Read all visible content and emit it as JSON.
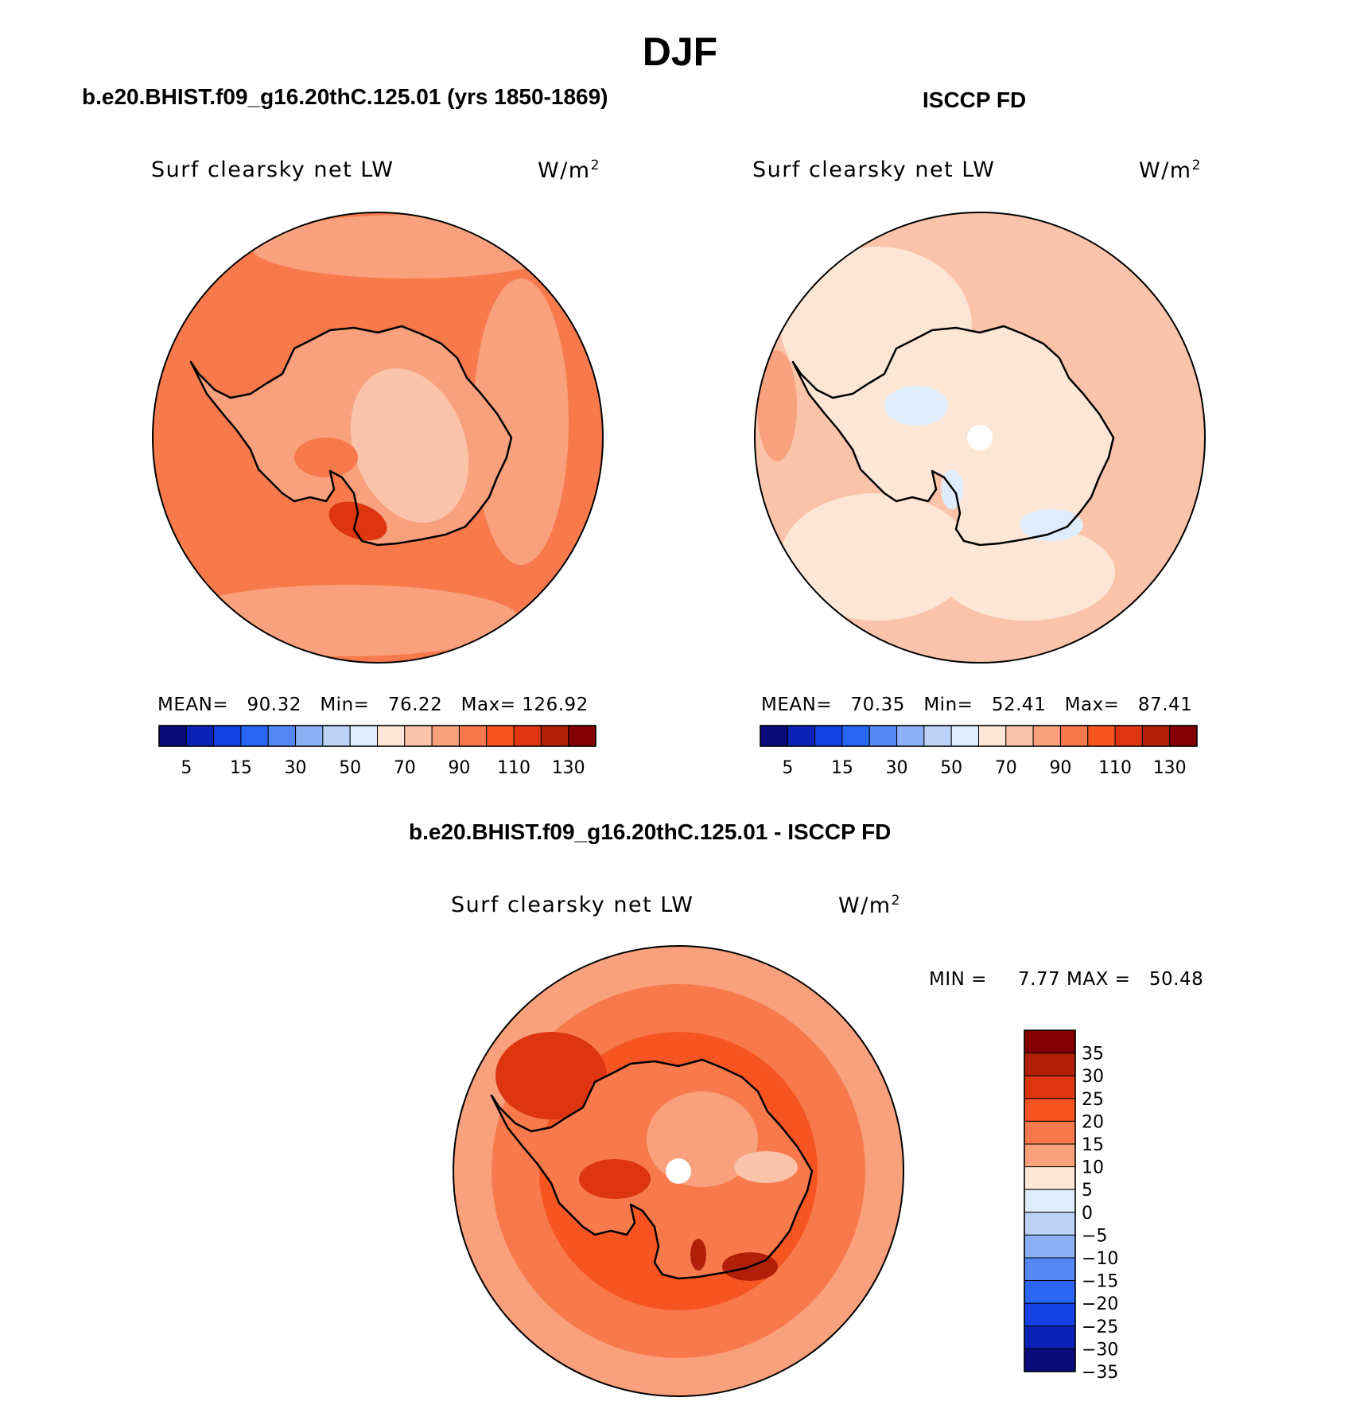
{
  "figure": {
    "title": "DJF",
    "panels": [
      {
        "id": "model",
        "title": "b.e20.BHIST.f09_g16.20thC.125.01 (yrs 1850-1869)",
        "variable": "Surf clearsky net LW",
        "units": "W/m",
        "units_exponent": "2",
        "mean_label": "MEAN=",
        "mean": "90.32",
        "min_label": "Min=",
        "min": "76.22",
        "max_label": "Max=",
        "max": "126.92"
      },
      {
        "id": "obs",
        "title": "ISCCP FD",
        "variable": "Surf clearsky net LW",
        "units": "W/m",
        "units_exponent": "2",
        "mean_label": "MEAN=",
        "mean": "70.35",
        "min_label": "Min=",
        "min": "52.41",
        "max_label": "Max=",
        "max": "87.41"
      },
      {
        "id": "diff",
        "title": "b.e20.BHIST.f09_g16.20thC.125.01 - ISCCP FD",
        "variable": "Surf clearsky net LW",
        "units": "W/m",
        "units_exponent": "2",
        "min_label": "MIN =",
        "min": "7.77",
        "max_label": "MAX =",
        "max": "50.48"
      }
    ],
    "field_colorbar": {
      "colors": [
        "#0a0a7a",
        "#0a23b4",
        "#1440e6",
        "#2a66f5",
        "#5588f5",
        "#8cb0f5",
        "#bcd2f7",
        "#dfecfb",
        "#fde6d6",
        "#fbc4aa",
        "#f9a07c",
        "#f87a4c",
        "#f65522",
        "#dc3510",
        "#b21f08",
        "#820000"
      ],
      "tick_labels": [
        "5",
        "15",
        "30",
        "50",
        "70",
        "90",
        "110",
        "130"
      ]
    },
    "diff_colorbar": {
      "colors": [
        "#820000",
        "#b21f08",
        "#dc3510",
        "#f65522",
        "#f87a4c",
        "#f9a07c",
        "#fde6d6",
        "#dfecfb",
        "#bcd2f7",
        "#8cb0f5",
        "#5588f5",
        "#2a66f5",
        "#1440e6",
        "#0a23b4",
        "#0a0a7a"
      ],
      "tick_labels": [
        "35",
        "30",
        "25",
        "20",
        "15",
        "10",
        "5",
        "0",
        "−5",
        "−10",
        "−15",
        "−20",
        "−25",
        "−30",
        "−35"
      ]
    },
    "map_colors": {
      "model_ocean": "#f87a4c",
      "model_light": "#f9a07c",
      "model_ice_light": "#fbc4aa",
      "model_dark": "#f65522",
      "model_darker": "#dc3510",
      "obs_ocean": "#fbc4aa",
      "obs_light": "#fde6d6",
      "obs_mid": "#f9a07c",
      "obs_blue": "#dfecfb",
      "diff_ocean": "#f87a4c",
      "diff_light": "#f9a07c",
      "diff_dark": "#f65522",
      "diff_darker": "#dc3510",
      "diff_darkest": "#b21f08",
      "diff_pale": "#fbc4aa",
      "coast": "#000000"
    }
  }
}
